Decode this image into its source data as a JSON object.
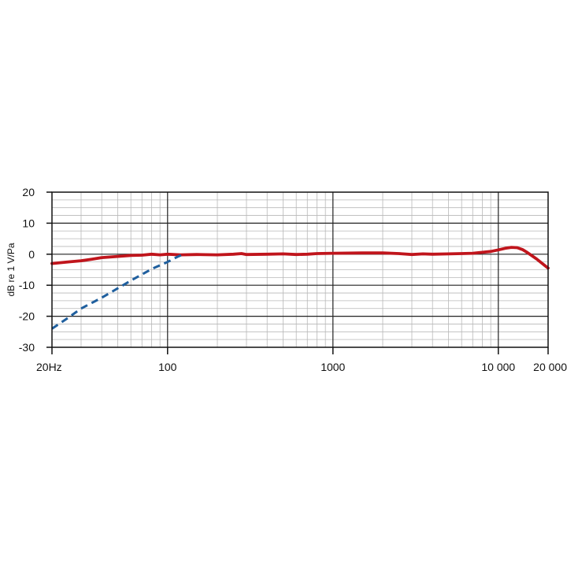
{
  "chart_data": {
    "type": "line",
    "title": "",
    "xlabel": "",
    "ylabel": "dB re 1 V/Pa",
    "x_scale": "log",
    "xlim": [
      20,
      20000
    ],
    "ylim": [
      -30,
      20
    ],
    "grid": true,
    "x_ticks": [
      {
        "value": 20,
        "label": "20Hz"
      },
      {
        "value": 100,
        "label": "100"
      },
      {
        "value": 1000,
        "label": "1000"
      },
      {
        "value": 10000,
        "label": "10 000"
      },
      {
        "value": 20000,
        "label": "20 000"
      }
    ],
    "y_ticks": [
      20,
      10,
      0,
      -10,
      -20,
      -30
    ],
    "series": [
      {
        "style": "solid",
        "color": "#c0151c",
        "points": [
          [
            20,
            -3.0
          ],
          [
            25,
            -2.5
          ],
          [
            30,
            -2.1
          ],
          [
            35,
            -1.6
          ],
          [
            40,
            -1.1
          ],
          [
            50,
            -0.7
          ],
          [
            60,
            -0.4
          ],
          [
            70,
            -0.3
          ],
          [
            80,
            0.0
          ],
          [
            90,
            -0.2
          ],
          [
            100,
            0.0
          ],
          [
            120,
            -0.2
          ],
          [
            150,
            -0.1
          ],
          [
            200,
            -0.2
          ],
          [
            250,
            0.0
          ],
          [
            280,
            0.2
          ],
          [
            300,
            -0.1
          ],
          [
            400,
            0.0
          ],
          [
            500,
            0.1
          ],
          [
            600,
            -0.1
          ],
          [
            700,
            0.0
          ],
          [
            800,
            0.2
          ],
          [
            1000,
            0.3
          ],
          [
            1500,
            0.4
          ],
          [
            2000,
            0.4
          ],
          [
            2500,
            0.2
          ],
          [
            3000,
            -0.1
          ],
          [
            3500,
            0.1
          ],
          [
            4000,
            0.0
          ],
          [
            5000,
            0.1
          ],
          [
            6000,
            0.2
          ],
          [
            7000,
            0.3
          ],
          [
            8000,
            0.6
          ],
          [
            9000,
            0.9
          ],
          [
            10000,
            1.4
          ],
          [
            11000,
            1.9
          ],
          [
            12000,
            2.2
          ],
          [
            13000,
            2.1
          ],
          [
            14000,
            1.5
          ],
          [
            15000,
            0.5
          ],
          [
            17000,
            -1.5
          ],
          [
            20000,
            -4.5
          ]
        ]
      },
      {
        "style": "dashed",
        "color": "#1f5f9e",
        "points": [
          [
            20,
            -24
          ],
          [
            25,
            -20.5
          ],
          [
            30,
            -17.5
          ],
          [
            40,
            -14
          ],
          [
            50,
            -11
          ],
          [
            60,
            -8.5
          ],
          [
            70,
            -6.5
          ],
          [
            80,
            -4.8
          ],
          [
            100,
            -2.5
          ],
          [
            115,
            -0.8
          ],
          [
            125,
            0
          ]
        ]
      }
    ]
  }
}
